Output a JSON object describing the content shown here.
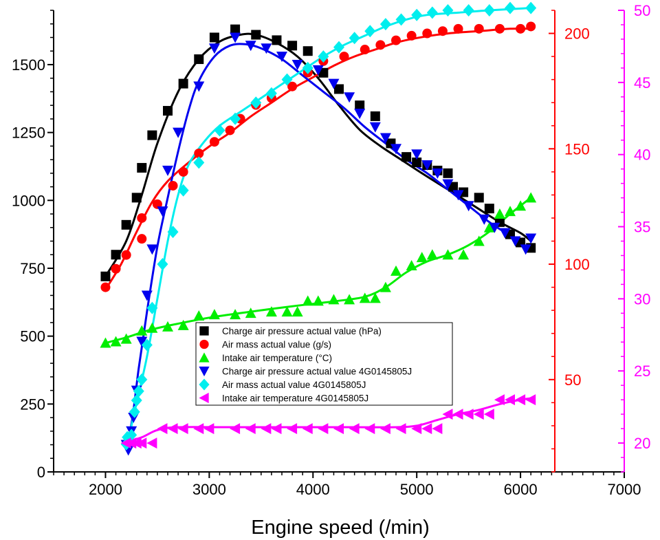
{
  "chart_data": {
    "type": "scatter",
    "xlabel": "Engine speed (/min)",
    "xlim": [
      1500,
      7000
    ],
    "x_ticks": [
      2000,
      3000,
      4000,
      5000,
      6000,
      7000
    ],
    "axes": [
      {
        "id": "left",
        "color": "#000000",
        "ylim": [
          0,
          1700
        ],
        "ticks": [
          0,
          250,
          500,
          750,
          1000,
          1250,
          1500
        ]
      },
      {
        "id": "right1",
        "color": "#ff0000",
        "ylim": [
          10,
          210
        ],
        "ticks": [
          50,
          100,
          150,
          200
        ]
      },
      {
        "id": "right2",
        "color": "#ff00ff",
        "ylim": [
          18,
          50
        ],
        "ticks": [
          20,
          25,
          30,
          35,
          40,
          45,
          50
        ]
      }
    ],
    "legend_position": "center",
    "series": [
      {
        "name": "Charge air pressure actual value (hPa)",
        "axis": "left",
        "color": "#000000",
        "marker": "square",
        "x": [
          2000,
          2100,
          2200,
          2300,
          2350,
          2450,
          2600,
          2750,
          2900,
          3050,
          3250,
          3450,
          3650,
          3800,
          3950,
          4100,
          4250,
          4450,
          4600,
          4750,
          4900,
          5000,
          5100,
          5200,
          5300,
          5350,
          5450,
          5600,
          5700,
          5800,
          5900,
          6000,
          6100
        ],
        "y": [
          720,
          800,
          910,
          1010,
          1120,
          1240,
          1330,
          1430,
          1520,
          1600,
          1630,
          1610,
          1590,
          1570,
          1550,
          1470,
          1410,
          1350,
          1310,
          1210,
          1160,
          1140,
          1130,
          1110,
          1100,
          1050,
          1030,
          1010,
          970,
          920,
          875,
          845,
          825
        ],
        "fit": [
          [
            2000,
            720
          ],
          [
            2200,
            850
          ],
          [
            2350,
            1020
          ],
          [
            2500,
            1210
          ],
          [
            2700,
            1400
          ],
          [
            2900,
            1520
          ],
          [
            3100,
            1585
          ],
          [
            3300,
            1610
          ],
          [
            3450,
            1610
          ],
          [
            3650,
            1580
          ],
          [
            3850,
            1530
          ],
          [
            4050,
            1450
          ],
          [
            4250,
            1350
          ],
          [
            4450,
            1260
          ],
          [
            4650,
            1200
          ],
          [
            4850,
            1150
          ],
          [
            5050,
            1100
          ],
          [
            5300,
            1040
          ],
          [
            5550,
            980
          ],
          [
            5800,
            920
          ],
          [
            6000,
            880
          ],
          [
            6100,
            850
          ]
        ]
      },
      {
        "name": "Air mass actual value (g/s)",
        "axis": "right1",
        "color": "#ff0000",
        "marker": "circle",
        "x": [
          2000,
          2100,
          2200,
          2350,
          2350,
          2500,
          2650,
          2750,
          2900,
          3050,
          3200,
          3300,
          3450,
          3600,
          3800,
          3950,
          4100,
          4300,
          4500,
          4650,
          4800,
          4950,
          5100,
          5250,
          5400,
          5600,
          5800,
          6000,
          6100
        ],
        "y": [
          90,
          98,
          104,
          111,
          120,
          126,
          134,
          140,
          148,
          153,
          158,
          163,
          169,
          172,
          177,
          183,
          188,
          190,
          193,
          195,
          197,
          199,
          200,
          201,
          202,
          202,
          202,
          202,
          203
        ],
        "fit": [
          [
            2000,
            89
          ],
          [
            2150,
            100
          ],
          [
            2300,
            114
          ],
          [
            2450,
            127
          ],
          [
            2600,
            136
          ],
          [
            2800,
            144
          ],
          [
            3000,
            151
          ],
          [
            3200,
            157
          ],
          [
            3400,
            164
          ],
          [
            3600,
            170
          ],
          [
            3800,
            176
          ],
          [
            4000,
            181
          ],
          [
            4200,
            186
          ],
          [
            4400,
            190
          ],
          [
            4600,
            193
          ],
          [
            4800,
            196
          ],
          [
            5000,
            198
          ],
          [
            5300,
            200
          ],
          [
            5600,
            201
          ],
          [
            5900,
            202
          ],
          [
            6100,
            202
          ]
        ]
      },
      {
        "name": "Intake air temperature (°C)",
        "axis": "left",
        "color": "#00ee00",
        "marker": "triangle-up",
        "x": [
          2000,
          2100,
          2200,
          2350,
          2450,
          2600,
          2750,
          2900,
          3050,
          3250,
          3400,
          3600,
          3750,
          3850,
          3950,
          4050,
          4200,
          4350,
          4500,
          4600,
          4700,
          4800,
          4950,
          5050,
          5150,
          5300,
          5450,
          5600,
          5700,
          5800,
          5900,
          6000,
          6100
        ],
        "y": [
          475,
          480,
          490,
          520,
          530,
          535,
          540,
          575,
          580,
          580,
          585,
          590,
          590,
          590,
          630,
          630,
          635,
          635,
          640,
          640,
          680,
          740,
          760,
          790,
          800,
          800,
          800,
          850,
          900,
          950,
          960,
          980,
          1010
        ],
        "fit": [
          [
            2000,
            475
          ],
          [
            2200,
            495
          ],
          [
            2400,
            520
          ],
          [
            2600,
            538
          ],
          [
            3000,
            568
          ],
          [
            3400,
            590
          ],
          [
            3800,
            610
          ],
          [
            4200,
            628
          ],
          [
            4500,
            645
          ],
          [
            4700,
            680
          ],
          [
            4900,
            735
          ],
          [
            5100,
            775
          ],
          [
            5300,
            800
          ],
          [
            5500,
            835
          ],
          [
            5700,
            885
          ],
          [
            5900,
            950
          ],
          [
            6100,
            1010
          ]
        ]
      },
      {
        "name": "Charge air pressure actual value 4G0145805J",
        "axis": "left",
        "color": "#0000ee",
        "marker": "triangle-down",
        "x": [
          2200,
          2220,
          2250,
          2270,
          2300,
          2350,
          2400,
          2450,
          2550,
          2600,
          2700,
          2900,
          3050,
          3250,
          3400,
          3550,
          3700,
          3850,
          4050,
          4200,
          4350,
          4450,
          4600,
          4700,
          4800,
          5000,
          5100,
          5200,
          5300,
          5400,
          5500,
          5650,
          5750,
          5850,
          5950,
          6050,
          6100
        ],
        "y": [
          100,
          80,
          150,
          200,
          300,
          480,
          650,
          820,
          960,
          1110,
          1250,
          1420,
          1560,
          1600,
          1570,
          1560,
          1530,
          1500,
          1480,
          1430,
          1380,
          1320,
          1270,
          1230,
          1190,
          1170,
          1130,
          1100,
          1060,
          1020,
          980,
          930,
          900,
          880,
          850,
          820,
          860
        ],
        "fit": [
          [
            2200,
            80
          ],
          [
            2260,
            200
          ],
          [
            2320,
            380
          ],
          [
            2400,
            590
          ],
          [
            2500,
            830
          ],
          [
            2600,
            1010
          ],
          [
            2700,
            1180
          ],
          [
            2800,
            1330
          ],
          [
            2900,
            1440
          ],
          [
            3050,
            1530
          ],
          [
            3200,
            1570
          ],
          [
            3350,
            1575
          ],
          [
            3500,
            1560
          ],
          [
            3700,
            1520
          ],
          [
            3900,
            1460
          ],
          [
            4100,
            1400
          ],
          [
            4300,
            1340
          ],
          [
            4500,
            1270
          ],
          [
            4700,
            1210
          ],
          [
            4900,
            1150
          ],
          [
            5100,
            1100
          ],
          [
            5300,
            1040
          ],
          [
            5500,
            980
          ],
          [
            5700,
            920
          ],
          [
            5900,
            870
          ],
          [
            6100,
            820
          ]
        ]
      },
      {
        "name": "Air mass actual value 4G0145805J",
        "axis": "right1",
        "color": "#00eeee",
        "marker": "diamond",
        "x": [
          2200,
          2210,
          2220,
          2250,
          2280,
          2300,
          2320,
          2350,
          2400,
          2450,
          2550,
          2650,
          2750,
          2900,
          3100,
          3250,
          3450,
          3600,
          3750,
          3950,
          4100,
          4250,
          4400,
          4550,
          4700,
          4850,
          5000,
          5150,
          5300,
          5500,
          5700,
          5900,
          6100
        ],
        "y": [
          22,
          25,
          23,
          26,
          36,
          41,
          45,
          50,
          65,
          81,
          100,
          114,
          132,
          144,
          158,
          163,
          170,
          174,
          180,
          185,
          190,
          194,
          198,
          201,
          204,
          206,
          208,
          209,
          210,
          210,
          210,
          211,
          211
        ],
        "fit": [
          [
            2200,
            20
          ],
          [
            2250,
            30
          ],
          [
            2300,
            40
          ],
          [
            2400,
            60
          ],
          [
            2500,
            85
          ],
          [
            2600,
            110
          ],
          [
            2700,
            130
          ],
          [
            2800,
            143
          ],
          [
            2950,
            153
          ],
          [
            3100,
            160
          ],
          [
            3300,
            166
          ],
          [
            3500,
            172
          ],
          [
            3700,
            178
          ],
          [
            3900,
            184
          ],
          [
            4100,
            190
          ],
          [
            4300,
            195
          ],
          [
            4500,
            199
          ],
          [
            4700,
            203
          ],
          [
            4900,
            206
          ],
          [
            5100,
            208
          ],
          [
            5400,
            209
          ],
          [
            5700,
            210
          ],
          [
            6100,
            211
          ]
        ]
      },
      {
        "name": "Intake air temperature 4G0145805J",
        "axis": "right2",
        "color": "#ff00ff",
        "marker": "triangle-left",
        "x": [
          2200,
          2250,
          2300,
          2350,
          2450,
          2550,
          2650,
          2750,
          2900,
          3000,
          3250,
          3400,
          3550,
          3650,
          3800,
          3950,
          4100,
          4250,
          4400,
          4550,
          4700,
          4850,
          5000,
          5100,
          5200,
          5300,
          5400,
          5500,
          5600,
          5700,
          5800,
          5900,
          6000,
          6100
        ],
        "y": [
          20,
          20,
          20,
          20,
          20,
          21,
          21,
          21,
          21,
          21,
          21,
          21,
          21,
          21,
          21,
          21,
          21,
          21,
          21,
          21,
          21,
          21,
          21,
          21,
          21,
          22,
          22,
          22,
          22,
          22,
          23,
          23,
          23,
          23
        ],
        "fit": [
          [
            2200,
            20.1
          ],
          [
            2350,
            20.4
          ],
          [
            2500,
            20.9
          ],
          [
            2700,
            21.1
          ],
          [
            3200,
            21.1
          ],
          [
            3800,
            21.1
          ],
          [
            4400,
            21.1
          ],
          [
            4800,
            21.1
          ],
          [
            5000,
            21.2
          ],
          [
            5200,
            21.6
          ],
          [
            5400,
            22.0
          ],
          [
            5600,
            22.3
          ],
          [
            5800,
            22.7
          ],
          [
            6000,
            23.0
          ],
          [
            6100,
            23.1
          ]
        ]
      }
    ]
  }
}
